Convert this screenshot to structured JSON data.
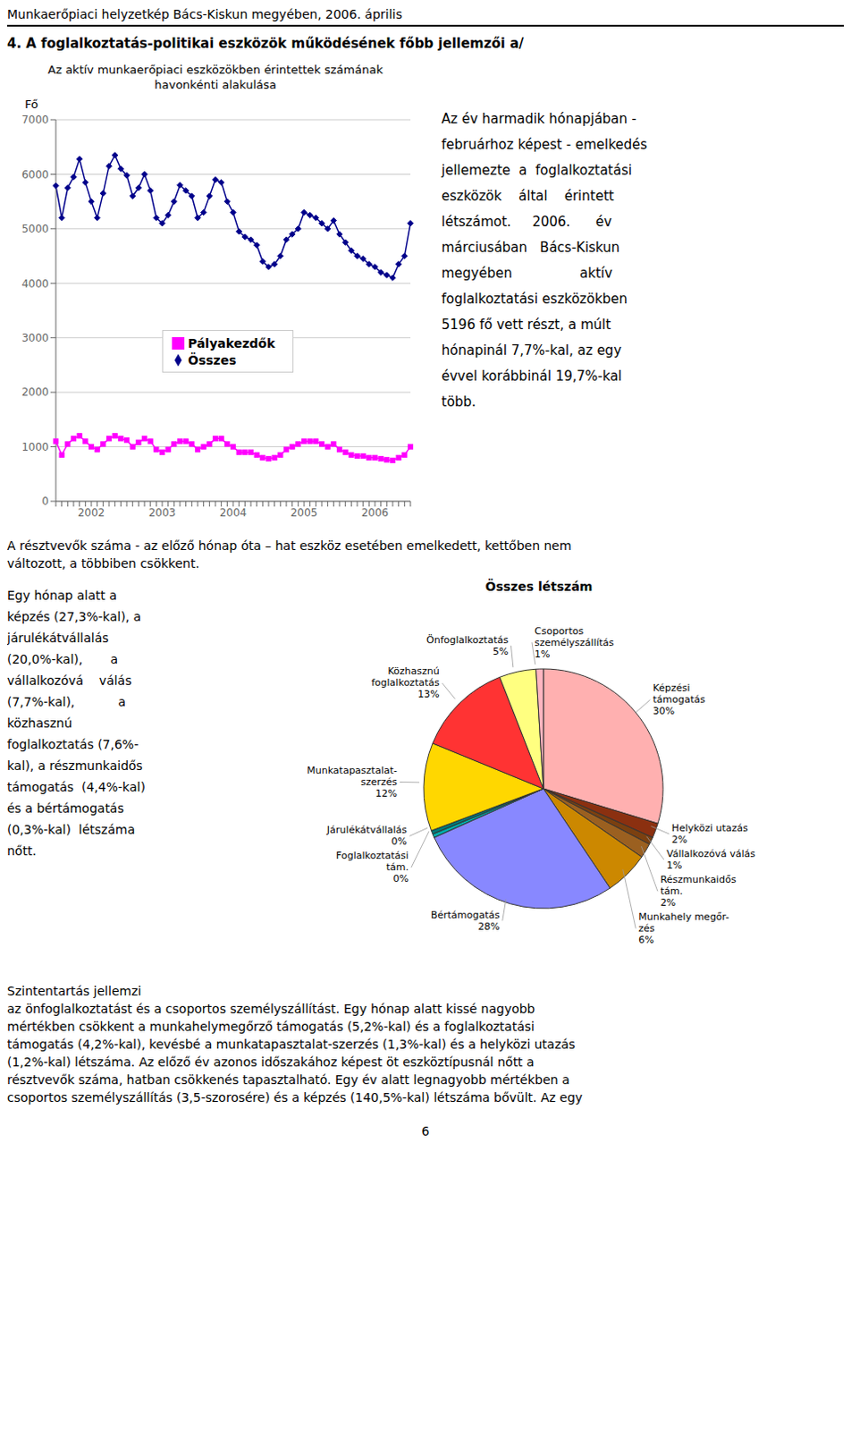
{
  "chart_data": [
    {
      "type": "line",
      "title": "Az aktív munkaerőpiaci eszközökben érintettek számának\nhavonkénti alakulása",
      "ylabel": "Fő",
      "categories": [
        null,
        null,
        null,
        null,
        null,
        null,
        "2002",
        null,
        null,
        null,
        null,
        null,
        null,
        null,
        null,
        null,
        null,
        null,
        "2003",
        null,
        null,
        null,
        null,
        null,
        null,
        null,
        null,
        null,
        null,
        null,
        "2004",
        null,
        null,
        null,
        null,
        null,
        null,
        null,
        null,
        null,
        null,
        null,
        "2005",
        null,
        null,
        null,
        null,
        null,
        null,
        null,
        null,
        null,
        null,
        null,
        "2006",
        null,
        null,
        null,
        null,
        null,
        null
      ],
      "series": [
        {
          "name": "Összes",
          "color": "#00008B",
          "marker": "diamond",
          "values": [
            5790,
            5200,
            5750,
            5950,
            6280,
            5850,
            5500,
            5200,
            5650,
            6150,
            6350,
            6100,
            5980,
            5600,
            5750,
            6000,
            5700,
            5200,
            5100,
            5250,
            5500,
            5800,
            5700,
            5600,
            5200,
            5300,
            5600,
            5900,
            5850,
            5500,
            5300,
            4950,
            4850,
            4800,
            4700,
            4400,
            4300,
            4350,
            4500,
            4800,
            4900,
            5000,
            5300,
            5250,
            5200,
            5100,
            5000,
            5150,
            4900,
            4750,
            4600,
            4500,
            4450,
            4350,
            4300,
            4200,
            4150,
            4100,
            4350,
            4500,
            5100
          ]
        },
        {
          "name": "Pályakezdők",
          "color": "#FF00FF",
          "marker": "square",
          "values": [
            1100,
            850,
            1050,
            1150,
            1200,
            1100,
            1000,
            950,
            1050,
            1150,
            1200,
            1150,
            1120,
            1000,
            1080,
            1150,
            1100,
            950,
            900,
            950,
            1050,
            1100,
            1100,
            1050,
            950,
            1000,
            1050,
            1150,
            1150,
            1050,
            1000,
            900,
            900,
            900,
            850,
            800,
            780,
            800,
            850,
            950,
            1000,
            1050,
            1100,
            1100,
            1100,
            1050,
            1000,
            1050,
            950,
            900,
            850,
            830,
            830,
            800,
            800,
            780,
            760,
            750,
            800,
            850,
            1000
          ]
        }
      ],
      "ylim": [
        0,
        7000
      ],
      "yticks": [
        0,
        1000,
        2000,
        3000,
        4000,
        5000,
        6000,
        7000
      ],
      "grid": true,
      "legend": "lower center",
      "annotations": [
        [
          "Munkaerőpiaci helyzetkép Bács-Kiskun megyében, 2006. április",
          "4. A foglalkoztatás-politikai eszközök működésének főbb jellemzői a/"
        ],
        [
          "Az év harmadik hónapjában -",
          "februárhoz képest - emelkedés",
          "jellemezte  a  foglalkoztatási",
          "eszközök    által    érintett",
          "létszámot.     2006.      év",
          "márciusában   Bács-Kiskun",
          "megyében                aktív",
          "foglalkoztatási eszközökben",
          "5196 fő vett részt, a múlt",
          "hónapinál 7,7%-kal, az egy",
          "évvel korábbinál 19,7%-kal",
          "több."
        ]
      ]
    },
    {
      "type": "pie",
      "title": "Összes létszám",
      "categories": [
        "Képzési\ntámogatás",
        "Helyközi utazás",
        "Vállalkozóvá válás",
        "Részmunkaidős\ntám.",
        "Munkahely megőr-\nzés",
        "Bértámogatás",
        "Foglalkoztatási\ntám.",
        "Járulékátvállalás",
        "Munkatapasztalat-\nszerzés",
        "Közhasznú\nfoglalkoztatás",
        "Önfoglalkoztatás",
        "Csoportos\nszemélyszállítás"
      ],
      "values": [
        30,
        2,
        1,
        2,
        6,
        28,
        0.5,
        0.5,
        12,
        13,
        5,
        1
      ],
      "value_labels": [
        "30%",
        "2%",
        "1%",
        "2%",
        "6%",
        "28%",
        "0%",
        "0%",
        "12%",
        "13%",
        "5%",
        "1%"
      ],
      "colors": [
        "#FFB0B0",
        "#8B3010",
        "#7B4010",
        "#9B6020",
        "#CC8800",
        "#8888FF",
        "#00AAAA",
        "#007777",
        "#FFD700",
        "#FF3333",
        "#FFFF80",
        "#FFB6C1"
      ],
      "data_labels": true,
      "annotations": [
        [
          "A résztvevők száma - az előző hónap óta – hat eszköz esetében emelkedett, kettőben nem",
          "változott, a többiben csökkent."
        ],
        [
          "Egy hónap alatt a",
          "képzés (27,3%-kal), a",
          "járulékátvállalás",
          "(20,0%-kal),       a",
          "vállalkozóvá    válás",
          "(7,7%-kal),           a",
          "közhasznú",
          "foglalkoztatás (7,6%-",
          "kal), a részmunkaidős",
          "támogatás  (4,4%-kal)",
          "és a bértámogatás",
          "(0,3%-kal)  létszáma",
          "nőtt."
        ],
        [
          "Szintentartás jellemzi",
          "az önfoglalkoztatást és a csoportos személyszállítást. Egy hónap alatt kissé nagyobb",
          "mértékben csökkent a munkahelymegőrző támogatás (5,2%-kal) és a foglalkoztatási",
          "támogatás (4,2%-kal), kevésbé a munkatapasztalat-szerzés (1,3%-kal) és a helyközi utazás",
          "(1,2%-kal) létszáma. Az előző év azonos időszakához képest öt eszköztípusnál nőtt a",
          "résztvevők száma, hatban csökkenés tapasztalható. Egy év alatt legnagyobb mértékben a",
          "csoportos személyszállítás (3,5-szorosére) és a képzés (140,5%-kal) létszáma bővült. Az egy"
        ],
        [
          "6"
        ]
      ]
    }
  ]
}
